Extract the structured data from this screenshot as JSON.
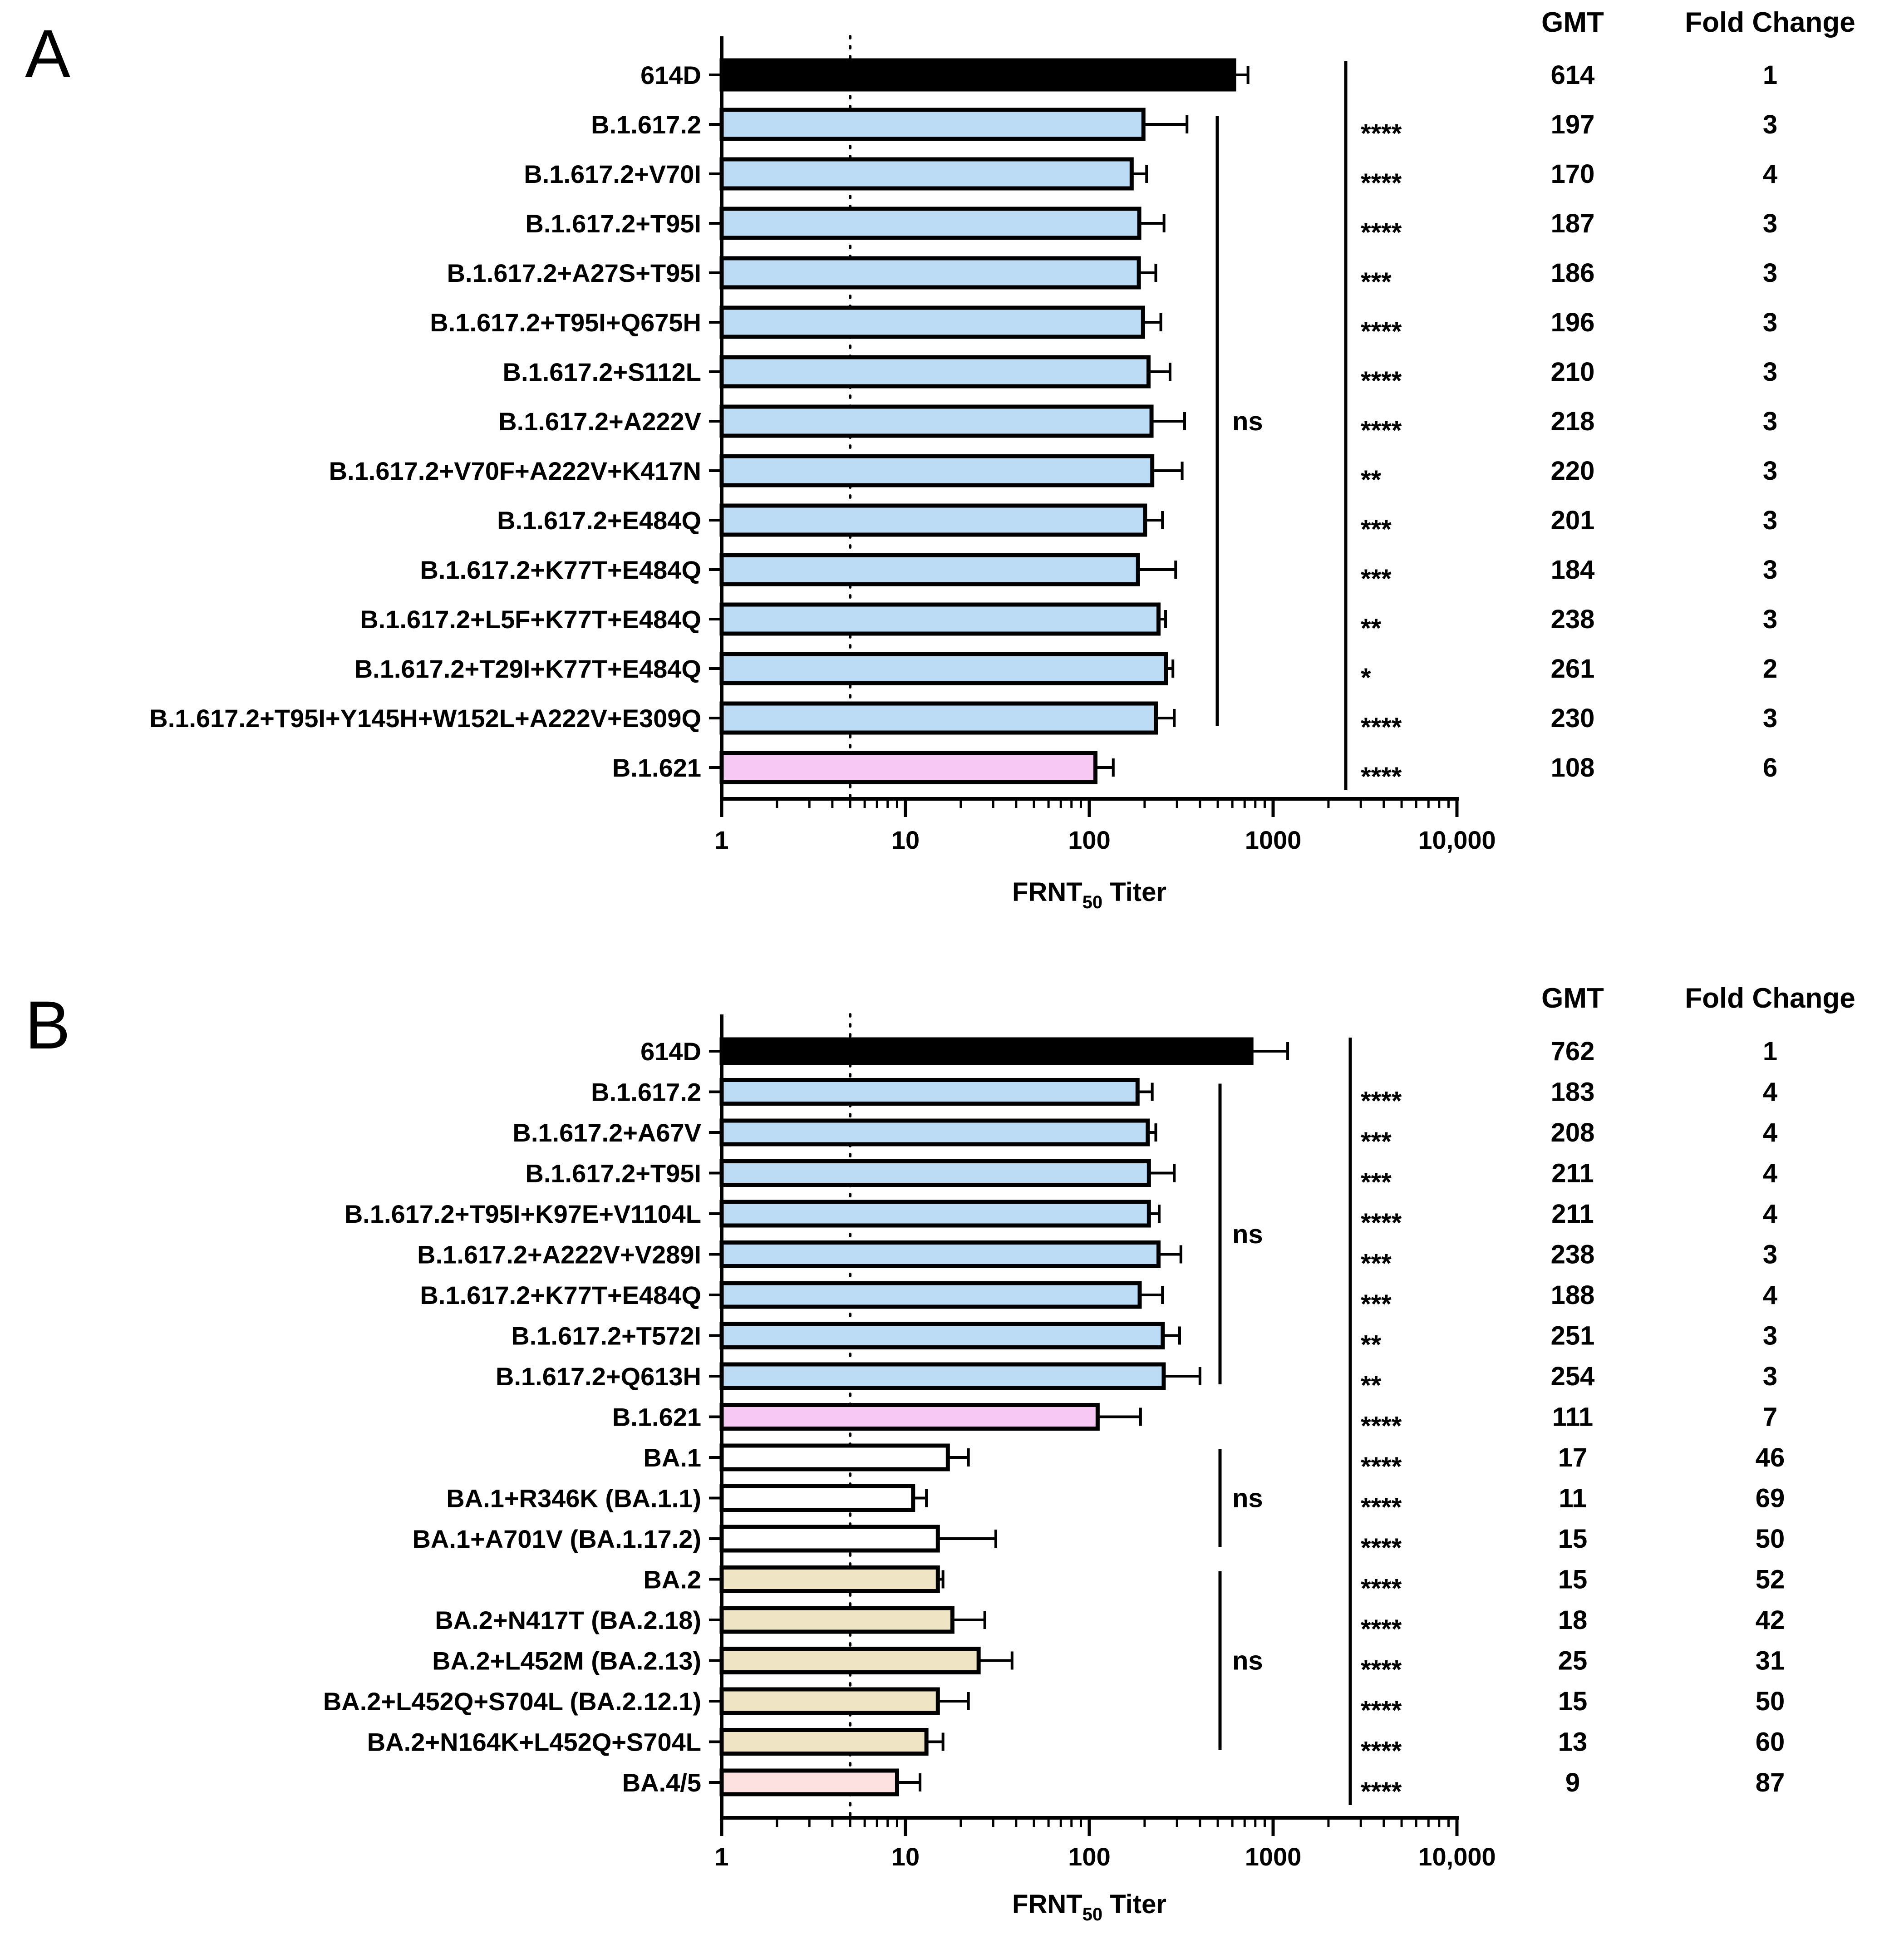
{
  "chart_data": [
    {
      "type": "bar",
      "orientation": "horizontal",
      "panel": "A",
      "xscale": "log",
      "xlim": [
        1,
        10000
      ],
      "x_ticks": [
        "1",
        "10",
        "100",
        "1000",
        "10,000"
      ],
      "xlabel": "FRNT",
      "xlabel_sub": "50",
      "xlabel_suffix": " Titer",
      "threshold": 5,
      "col_headers": [
        "GMT",
        "Fold Change"
      ],
      "categories": [
        "614D",
        "B.1.617.2",
        "B.1.617.2+V70I",
        "B.1.617.2+T95I",
        "B.1.617.2+A27S+T95I",
        "B.1.617.2+T95I+Q675H",
        "B.1.617.2+S112L",
        "B.1.617.2+A222V",
        "B.1.617.2+V70F+A222V+K417N",
        "B.1.617.2+E484Q",
        "B.1.617.2+K77T+E484Q",
        "B.1.617.2+L5F+K77T+E484Q",
        "B.1.617.2+T29I+K77T+E484Q",
        "B.1.617.2+T95I+Y145H+W152L+A222V+E309Q",
        "B.1.621"
      ],
      "values": [
        614,
        197,
        170,
        187,
        186,
        196,
        210,
        218,
        220,
        201,
        184,
        238,
        261,
        230,
        108
      ],
      "error_upper": [
        730,
        340,
        205,
        255,
        230,
        245,
        275,
        330,
        320,
        250,
        295,
        260,
        285,
        290,
        135
      ],
      "gmt": [
        "614",
        "197",
        "170",
        "187",
        "186",
        "196",
        "210",
        "218",
        "220",
        "201",
        "184",
        "238",
        "261",
        "230",
        "108"
      ],
      "fold_change": [
        "1",
        "3",
        "4",
        "3",
        "3",
        "3",
        "3",
        "3",
        "3",
        "3",
        "3",
        "3",
        "2",
        "3",
        "6"
      ],
      "significance": [
        "",
        "****",
        "****",
        "****",
        "***",
        "****",
        "****",
        "****",
        "**",
        "***",
        "***",
        "**",
        "*",
        "****",
        "****"
      ],
      "colors": [
        "#000000",
        "#bcdcf6",
        "#bcdcf6",
        "#bcdcf6",
        "#bcdcf6",
        "#bcdcf6",
        "#bcdcf6",
        "#bcdcf6",
        "#bcdcf6",
        "#bcdcf6",
        "#bcdcf6",
        "#bcdcf6",
        "#bcdcf6",
        "#bcdcf6",
        "#f8c8f4"
      ],
      "ns_groups": [
        {
          "from": 1,
          "to": 13,
          "label": "ns"
        }
      ]
    },
    {
      "type": "bar",
      "orientation": "horizontal",
      "panel": "B",
      "xscale": "log",
      "xlim": [
        1,
        10000
      ],
      "x_ticks": [
        "1",
        "10",
        "100",
        "1000",
        "10,000"
      ],
      "xlabel": "FRNT",
      "xlabel_sub": "50",
      "xlabel_suffix": " Titer",
      "threshold": 5,
      "col_headers": [
        "GMT",
        "Fold Change"
      ],
      "categories": [
        "614D",
        "B.1.617.2",
        "B.1.617.2+A67V",
        "B.1.617.2+T95I",
        "B.1.617.2+T95I+K97E+V1104L",
        "B.1.617.2+A222V+V289I",
        "B.1.617.2+K77T+E484Q",
        "B.1.617.2+T572I",
        "B.1.617.2+Q613H",
        "B.1.621",
        "BA.1",
        "BA.1+R346K (BA.1.1)",
        "BA.1+A701V (BA.1.17.2)",
        "BA.2",
        "BA.2+N417T (BA.2.18)",
        "BA.2+L452M (BA.2.13)",
        "BA.2+L452Q+S704L (BA.2.12.1)",
        "BA.2+N164K+L452Q+S704L",
        "BA.4/5"
      ],
      "values": [
        762,
        183,
        208,
        211,
        211,
        238,
        188,
        251,
        254,
        111,
        17,
        11,
        15,
        15,
        18,
        25,
        15,
        13,
        9
      ],
      "error_upper": [
        1200,
        220,
        230,
        290,
        240,
        315,
        250,
        310,
        400,
        190,
        22,
        13,
        31,
        16,
        27,
        38,
        22,
        16,
        12
      ],
      "gmt": [
        "762",
        "183",
        "208",
        "211",
        "211",
        "238",
        "188",
        "251",
        "254",
        "111",
        "17",
        "11",
        "15",
        "15",
        "18",
        "25",
        "15",
        "13",
        "9"
      ],
      "fold_change": [
        "1",
        "4",
        "4",
        "4",
        "4",
        "3",
        "4",
        "3",
        "3",
        "7",
        "46",
        "69",
        "50",
        "52",
        "42",
        "31",
        "50",
        "60",
        "87"
      ],
      "significance": [
        "",
        "****",
        "***",
        "***",
        "****",
        "***",
        "***",
        "**",
        "**",
        "****",
        "****",
        "****",
        "****",
        "****",
        "****",
        "****",
        "****",
        "****",
        "****"
      ],
      "colors": [
        "#000000",
        "#bcdcf6",
        "#bcdcf6",
        "#bcdcf6",
        "#bcdcf6",
        "#bcdcf6",
        "#bcdcf6",
        "#bcdcf6",
        "#bcdcf6",
        "#f8c8f4",
        "#ffffff",
        "#ffffff",
        "#ffffff",
        "#efe4c4",
        "#efe4c4",
        "#efe4c4",
        "#efe4c4",
        "#efe4c4",
        "#fde0e0"
      ],
      "ns_groups": [
        {
          "from": 1,
          "to": 8,
          "label": "ns"
        },
        {
          "from": 10,
          "to": 12,
          "label": "ns"
        },
        {
          "from": 13,
          "to": 17,
          "label": "ns"
        }
      ]
    }
  ]
}
